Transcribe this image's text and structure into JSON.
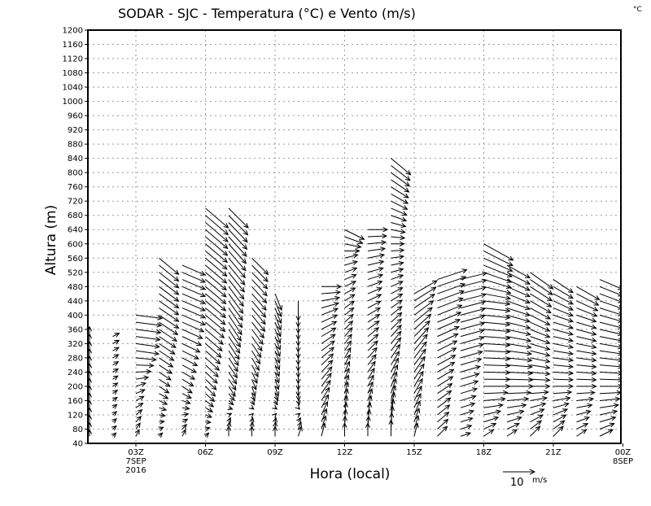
{
  "chart_data": {
    "type": "vector",
    "title": "SODAR - SJC - Temperatura (°C) e Vento (m/s)",
    "corner_unit": "°C",
    "xlabel": "Hora (local)",
    "ylabel": "Altura (m)",
    "ylim": [
      40,
      1200
    ],
    "y_ticks": [
      40,
      80,
      120,
      160,
      200,
      240,
      280,
      320,
      360,
      400,
      440,
      480,
      520,
      560,
      600,
      640,
      680,
      720,
      760,
      800,
      840,
      880,
      920,
      960,
      1000,
      1040,
      1080,
      1120,
      1160,
      1200
    ],
    "xlim_hours": [
      1,
      24
    ],
    "x_ticks": [
      {
        "hour": 3,
        "label": "03Z",
        "sub1": "7SEP",
        "sub2": "2016"
      },
      {
        "hour": 6,
        "label": "06Z"
      },
      {
        "hour": 9,
        "label": "09Z"
      },
      {
        "hour": 12,
        "label": "12Z"
      },
      {
        "hour": 15,
        "label": "15Z"
      },
      {
        "hour": 18,
        "label": "18Z"
      },
      {
        "hour": 21,
        "label": "21Z"
      },
      {
        "hour": 24,
        "label": "00Z",
        "sub1": "8SEP"
      }
    ],
    "grid": true,
    "reference_vector": {
      "value": 10,
      "label": "10",
      "unit": "m/s"
    },
    "level_step_m": 20,
    "columns": [
      {
        "hour": 1,
        "top": 340,
        "profile": [
          [
            60,
            0,
            2
          ],
          [
            340,
            0,
            3
          ]
        ]
      },
      {
        "hour": 2,
        "top": 340,
        "profile": [
          [
            60,
            1,
            1
          ],
          [
            340,
            2,
            1
          ]
        ]
      },
      {
        "hour": 3,
        "top": 400,
        "profile": [
          [
            60,
            1,
            2
          ],
          [
            200,
            3,
            1
          ],
          [
            300,
            7,
            -1
          ],
          [
            400,
            8,
            -1
          ]
        ]
      },
      {
        "hour": 4,
        "top": 560,
        "profile": [
          [
            60,
            1,
            1
          ],
          [
            200,
            3,
            -2
          ],
          [
            400,
            6,
            -4
          ],
          [
            560,
            6,
            -5
          ]
        ]
      },
      {
        "hour": 5,
        "top": 540,
        "profile": [
          [
            60,
            1,
            2
          ],
          [
            200,
            3,
            -2
          ],
          [
            400,
            7,
            -3
          ],
          [
            540,
            7,
            -3
          ]
        ]
      },
      {
        "hour": 6,
        "top": 700,
        "profile": [
          [
            60,
            1,
            1
          ],
          [
            200,
            3,
            -3
          ],
          [
            400,
            6,
            -5
          ],
          [
            700,
            7,
            -6
          ]
        ]
      },
      {
        "hour": 7,
        "top": 700,
        "profile": [
          [
            60,
            0,
            3
          ],
          [
            200,
            2,
            -3
          ],
          [
            400,
            4,
            -6
          ],
          [
            700,
            6,
            -6
          ]
        ]
      },
      {
        "hour": 8,
        "top": 560,
        "profile": [
          [
            60,
            0,
            3
          ],
          [
            200,
            1,
            -3
          ],
          [
            400,
            4,
            -5
          ],
          [
            560,
            5,
            -5
          ]
        ]
      },
      {
        "hour": 9,
        "top": 460,
        "profile": [
          [
            60,
            0,
            3
          ],
          [
            200,
            1,
            -3
          ],
          [
            460,
            2,
            -5
          ]
        ]
      },
      {
        "hour": 10,
        "top": 440,
        "profile": [
          [
            60,
            1,
            3
          ],
          [
            200,
            0,
            -3
          ],
          [
            440,
            0,
            -6
          ]
        ]
      },
      {
        "hour": 11,
        "top": 480,
        "profile": [
          [
            60,
            1,
            4
          ],
          [
            200,
            3,
            4
          ],
          [
            400,
            5,
            2
          ],
          [
            480,
            6,
            0
          ]
        ]
      },
      {
        "hour": 12,
        "top": 640,
        "profile": [
          [
            60,
            0,
            4
          ],
          [
            300,
            2,
            3
          ],
          [
            560,
            4,
            1
          ],
          [
            640,
            6,
            -3
          ]
        ]
      },
      {
        "hour": 13,
        "top": 640,
        "profile": [
          [
            60,
            0,
            4
          ],
          [
            300,
            3,
            3
          ],
          [
            560,
            5,
            1
          ],
          [
            640,
            6,
            0
          ]
        ]
      },
      {
        "hour": 14,
        "top": 840,
        "profile": [
          [
            60,
            0,
            5
          ],
          [
            300,
            3,
            4
          ],
          [
            600,
            4,
            0
          ],
          [
            840,
            6,
            -5
          ]
        ]
      },
      {
        "hour": 15,
        "top": 460,
        "profile": [
          [
            60,
            1,
            4
          ],
          [
            300,
            4,
            5
          ],
          [
            460,
            7,
            4
          ]
        ]
      },
      {
        "hour": 16,
        "top": 500,
        "profile": [
          [
            60,
            3,
            3
          ],
          [
            300,
            6,
            3
          ],
          [
            500,
            9,
            3
          ]
        ]
      },
      {
        "hour": 17,
        "top": 500,
        "profile": [
          [
            60,
            3,
            1
          ],
          [
            300,
            7,
            2
          ],
          [
            500,
            8,
            2
          ]
        ]
      },
      {
        "hour": 18,
        "top": 600,
        "profile": [
          [
            60,
            3,
            2
          ],
          [
            200,
            8,
            0
          ],
          [
            440,
            8,
            -1
          ],
          [
            600,
            9,
            -5
          ]
        ]
      },
      {
        "hour": 19,
        "top": 550,
        "profile": [
          [
            60,
            3,
            2
          ],
          [
            200,
            8,
            0
          ],
          [
            400,
            7,
            -2
          ],
          [
            550,
            7,
            -4
          ]
        ]
      },
      {
        "hour": 20,
        "top": 520,
        "profile": [
          [
            60,
            3,
            3
          ],
          [
            200,
            6,
            0
          ],
          [
            400,
            6,
            -3
          ],
          [
            520,
            7,
            -5
          ]
        ]
      },
      {
        "hour": 21,
        "top": 500,
        "profile": [
          [
            60,
            3,
            3
          ],
          [
            200,
            6,
            0
          ],
          [
            400,
            6,
            -2
          ],
          [
            500,
            6,
            -4
          ]
        ]
      },
      {
        "hour": 22,
        "top": 480,
        "profile": [
          [
            60,
            3,
            2
          ],
          [
            200,
            6,
            0
          ],
          [
            400,
            6,
            -2
          ],
          [
            480,
            7,
            -4
          ]
        ]
      },
      {
        "hour": 23,
        "top": 500,
        "profile": [
          [
            60,
            4,
            2
          ],
          [
            200,
            7,
            0
          ],
          [
            400,
            7,
            -2
          ],
          [
            500,
            7,
            -3
          ]
        ]
      },
      {
        "hour": 24,
        "top": 500,
        "profile": [
          [
            60,
            4,
            2
          ],
          [
            200,
            7,
            0
          ],
          [
            500,
            7,
            -3
          ]
        ]
      }
    ]
  }
}
